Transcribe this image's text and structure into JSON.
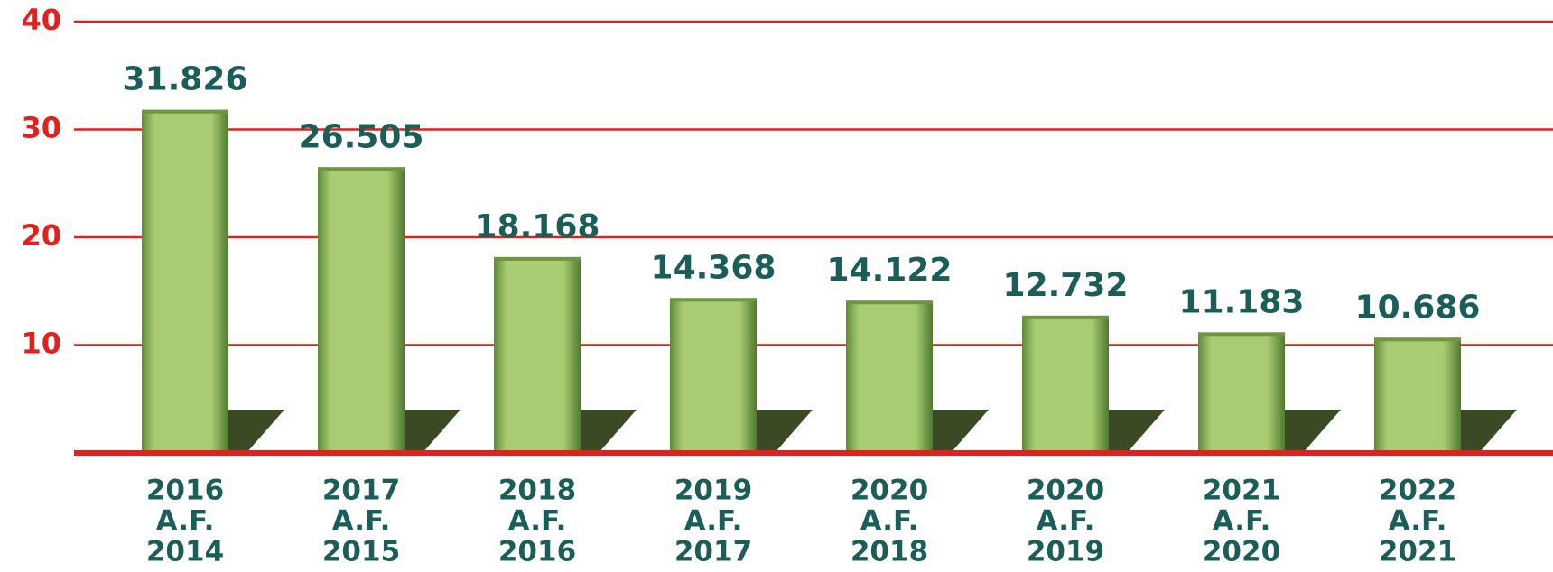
{
  "chart_data": {
    "type": "bar",
    "categories": [
      [
        "2016",
        "A.F.",
        "2014"
      ],
      [
        "2017",
        "A.F.",
        "2015"
      ],
      [
        "2018",
        "A.F.",
        "2016"
      ],
      [
        "2019",
        "A.F.",
        "2017"
      ],
      [
        "2020",
        "A.F.",
        "2018"
      ],
      [
        "2020",
        "A.F.",
        "2019"
      ],
      [
        "2021",
        "A.F.",
        "2020"
      ],
      [
        "2022",
        "A.F.",
        "2021"
      ]
    ],
    "values": [
      31.826,
      26.505,
      18.168,
      14.368,
      14.122,
      12.732,
      11.183,
      10.686
    ],
    "color": "#a9cc72",
    "grid_color": "#e3201e",
    "ylim": [
      0,
      40
    ],
    "yticks": [
      10,
      20,
      30,
      40
    ],
    "grid": true
  }
}
